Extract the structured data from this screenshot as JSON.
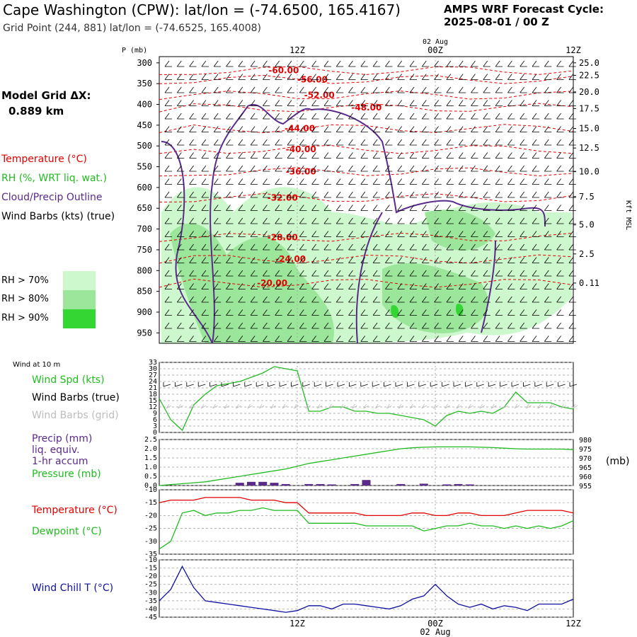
{
  "header": {
    "title": "Cape Washington (CPW):  lat/lon = (-74.6500, 165.4167)",
    "grid_point": "Grid Point (244, 881) lat/lon = (-74.6525, 165.4008)",
    "cycle_line1": "AMPS WRF Forecast Cycle:",
    "cycle_line2": "2025-08-01 / 00  Z"
  },
  "model_grid": {
    "label": "Model Grid ΔX:",
    "value": "0.889 km"
  },
  "legend_main": [
    {
      "text": "Temperature (°C)",
      "color": "#e00000"
    },
    {
      "text": "RH (%, WRT liq. wat.)",
      "color": "#22bb22"
    },
    {
      "text": "Cloud/Precip Outline",
      "color": "#5a2a8a"
    },
    {
      "text": "Wind Barbs (kts) (true)",
      "color": "#000000"
    }
  ],
  "rh_legend": [
    {
      "text": "RH > 70%",
      "color": "#cdf7cd"
    },
    {
      "text": "RH > 80%",
      "color": "#9be69b"
    },
    {
      "text": "RH > 90%",
      "color": "#33d633"
    }
  ],
  "time_axis": {
    "top_labels": [
      {
        "t": 12,
        "label": "12Z"
      },
      {
        "t": 24,
        "label": "00Z"
      },
      {
        "t": 36,
        "label": "12Z"
      }
    ],
    "day_label": "02 Aug",
    "bottom_labels": [
      {
        "t": 12,
        "label": "12Z"
      },
      {
        "t": 24,
        "label": "00Z"
      },
      {
        "t": 36,
        "label": "12Z"
      }
    ],
    "bottom_day": "02 Aug"
  },
  "chart_data": [
    {
      "type": "heatmap",
      "name": "upper-cross-section",
      "yaxis_label": "P (mb)",
      "pressure_ticks": [
        "300",
        "350",
        "400",
        "450",
        "500",
        "550",
        "600",
        "650",
        "700",
        "750",
        "800",
        "850",
        "900",
        "950"
      ],
      "right_axis_label": "Kft MSL",
      "height_ticks": [
        {
          "p": 300,
          "label": "25.0"
        },
        {
          "p": 330,
          "label": "22.5"
        },
        {
          "p": 370,
          "label": "20.0"
        },
        {
          "p": 410,
          "label": "17.5"
        },
        {
          "p": 458,
          "label": "15.0"
        },
        {
          "p": 505,
          "label": "12.5"
        },
        {
          "p": 562,
          "label": "10.0"
        },
        {
          "p": 622,
          "label": "7.5"
        },
        {
          "p": 690,
          "label": "5.0"
        },
        {
          "p": 760,
          "label": "2.5"
        },
        {
          "p": 830,
          "label": "0.11"
        }
      ],
      "temperature_contours": [
        {
          "label": "-60.00",
          "t": 9.5,
          "p": 318
        },
        {
          "label": "-56.00",
          "t": 12.0,
          "p": 340
        },
        {
          "label": "-52.00",
          "t": 12.6,
          "p": 378
        },
        {
          "label": "-48.00",
          "t": 16.7,
          "p": 408
        },
        {
          "label": "-44.00",
          "t": 10.9,
          "p": 458
        },
        {
          "label": "-40.00",
          "t": 11.0,
          "p": 508
        },
        {
          "label": "-36.00",
          "t": 11.0,
          "p": 562
        },
        {
          "label": "-32.00",
          "t": 9.4,
          "p": 625
        },
        {
          "label": "-28.00",
          "t": 9.4,
          "p": 720
        },
        {
          "label": "-24.00",
          "t": 10.1,
          "p": 772
        },
        {
          "label": "-20.00",
          "t": 8.5,
          "p": 830
        }
      ]
    },
    {
      "type": "line",
      "name": "wind-speed",
      "title": "Wind at 10 m",
      "legend": [
        {
          "text": "Wind Spd (kts)",
          "color": "#22bb22"
        },
        {
          "text": "Wind Barbs (true)",
          "color": "#000000"
        },
        {
          "text": "Wind Barbs (grid)",
          "color": "#bdbdbd"
        }
      ],
      "yticks": [
        0,
        3,
        6,
        9,
        12,
        15,
        18,
        21,
        24,
        27,
        30,
        33
      ],
      "ylim": [
        0,
        33
      ],
      "x": [
        0,
        1,
        2,
        3,
        4,
        5,
        6,
        7,
        8,
        9,
        10,
        11,
        12,
        13,
        14,
        15,
        16,
        17,
        18,
        19,
        20,
        21,
        22,
        23,
        24,
        25,
        26,
        27,
        28,
        29,
        30,
        31,
        32,
        33,
        34,
        35,
        36
      ],
      "series": [
        {
          "name": "Wind Spd (kts)",
          "color": "#22bb22",
          "values": [
            16,
            6,
            1,
            13,
            18,
            22,
            23,
            24,
            26,
            28,
            31,
            30,
            29,
            10,
            10,
            12,
            12,
            10,
            10,
            9,
            9,
            8,
            7,
            6,
            3,
            8,
            10,
            9,
            10,
            9,
            12,
            19,
            14,
            14,
            14,
            12,
            11
          ]
        }
      ]
    },
    {
      "type": "line",
      "name": "precip-pressure",
      "legend": [
        {
          "text": "Precip (mm)",
          "color": "#5a2a8a"
        },
        {
          "text": "liq. equiv.",
          "color": "#5a2a8a"
        },
        {
          "text": "1-hr accum",
          "color": "#5a2a8a"
        },
        {
          "text": "Pressure (mb)",
          "color": "#22bb22"
        }
      ],
      "left_ticks": [
        "0.0",
        "0.5",
        "1.0",
        "1.5",
        "2.0",
        "2.5"
      ],
      "left_ylim": [
        0,
        2.5
      ],
      "right_ticks": [
        "955",
        "960",
        "965",
        "970",
        "975",
        "980"
      ],
      "right_ylim": [
        955,
        980
      ],
      "right_unit": "(mb)",
      "x": [
        0,
        1,
        2,
        3,
        4,
        5,
        6,
        7,
        8,
        9,
        10,
        11,
        12,
        13,
        14,
        15,
        16,
        17,
        18,
        19,
        20,
        21,
        22,
        23,
        24,
        25,
        26,
        27,
        28,
        29,
        30,
        31,
        32,
        33,
        34,
        35,
        36
      ],
      "precip": [
        0,
        0,
        0,
        0,
        0,
        0,
        0,
        0.15,
        0.2,
        0.2,
        0.15,
        0.08,
        0,
        0.08,
        0.08,
        0.06,
        0,
        0.08,
        0.3,
        0,
        0,
        0.08,
        0,
        0.1,
        0,
        0.06,
        0.08,
        0.06,
        0,
        0,
        0,
        0,
        0,
        0,
        0,
        0,
        0
      ],
      "series": [
        {
          "name": "Pressure (mb)",
          "color": "#22bb22",
          "values": [
            955,
            955.5,
            956,
            956.5,
            957,
            958,
            959,
            960,
            961,
            962,
            963,
            964,
            965.5,
            967,
            968,
            969,
            970,
            971,
            972,
            973,
            974,
            975,
            975.5,
            975.8,
            976,
            976,
            976,
            976,
            975.8,
            975.6,
            975.3,
            975,
            974.8,
            974.8,
            974.8,
            974.8,
            974.5
          ]
        }
      ]
    },
    {
      "type": "line",
      "name": "temperature-dewpoint",
      "legend": [
        {
          "text": "Temperature (°C)",
          "color": "#e00000"
        },
        {
          "text": "Dewpoint (°C)",
          "color": "#22bb22"
        }
      ],
      "yticks": [
        -35,
        -30,
        -25,
        -20,
        -15,
        -10
      ],
      "ylim": [
        -35,
        -10
      ],
      "x": [
        0,
        1,
        2,
        3,
        4,
        5,
        6,
        7,
        8,
        9,
        10,
        11,
        12,
        13,
        14,
        15,
        16,
        17,
        18,
        19,
        20,
        21,
        22,
        23,
        24,
        25,
        26,
        27,
        28,
        29,
        30,
        31,
        32,
        33,
        34,
        35,
        36
      ],
      "series": [
        {
          "name": "Temperature (°C)",
          "color": "#e00000",
          "values": [
            -15,
            -14,
            -14,
            -14,
            -13,
            -13,
            -13,
            -13,
            -14,
            -14,
            -14,
            -15,
            -15,
            -19,
            -19,
            -19,
            -19,
            -19,
            -20,
            -20,
            -20,
            -20,
            -19,
            -19,
            -20,
            -20,
            -19,
            -19,
            -20,
            -20,
            -20,
            -19,
            -18,
            -18,
            -18,
            -18,
            -19
          ]
        },
        {
          "name": "Dewpoint (°C)",
          "color": "#22bb22",
          "values": [
            -33,
            -30,
            -19,
            -18,
            -20,
            -19,
            -19,
            -18,
            -18,
            -17,
            -18,
            -18,
            -18,
            -23,
            -23,
            -23,
            -23,
            -23,
            -24,
            -24,
            -24,
            -24,
            -24,
            -26,
            -25,
            -24,
            -24,
            -23,
            -24,
            -24,
            -25,
            -24,
            -25,
            -24,
            -25,
            -24,
            -22
          ]
        }
      ]
    },
    {
      "type": "line",
      "name": "wind-chill",
      "legend": [
        {
          "text": "Wind Chill T (°C)",
          "color": "#1010a0"
        }
      ],
      "yticks": [
        -45,
        -40,
        -35,
        -30,
        -25,
        -20,
        -15,
        -10
      ],
      "ylim": [
        -45,
        -10
      ],
      "x": [
        0,
        1,
        2,
        3,
        4,
        5,
        6,
        7,
        8,
        9,
        10,
        11,
        12,
        13,
        14,
        15,
        16,
        17,
        18,
        19,
        20,
        21,
        22,
        23,
        24,
        25,
        26,
        27,
        28,
        29,
        30,
        31,
        32,
        33,
        34,
        35,
        36
      ],
      "series": [
        {
          "name": "Wind Chill T (°C)",
          "color": "#1010a0",
          "values": [
            -35,
            -28,
            -14,
            -27,
            -35,
            -36,
            -37,
            -38,
            -39,
            -40,
            -41,
            -42,
            -41,
            -38,
            -38,
            -40,
            -37,
            -37,
            -38,
            -39,
            -40,
            -38,
            -34,
            -32,
            -25,
            -32,
            -37,
            -39,
            -37,
            -40,
            -38,
            -39,
            -41,
            -37,
            -37,
            -37,
            -34
          ]
        }
      ]
    }
  ]
}
